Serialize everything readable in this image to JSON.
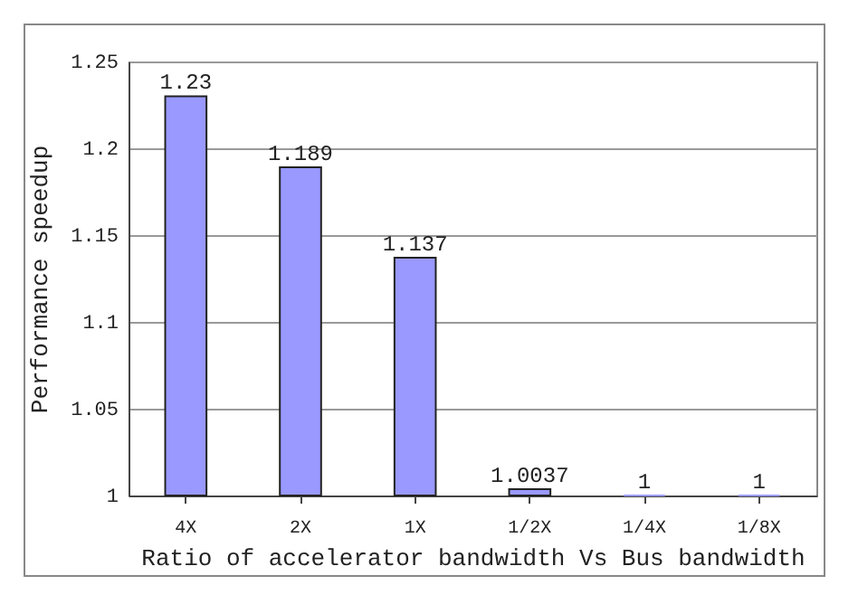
{
  "chart_data": {
    "type": "bar",
    "xlabel": "Ratio of accelerator bandwidth Vs Bus bandwidth",
    "ylabel": "Performance speedup",
    "categories": [
      "4X",
      "2X",
      "1X",
      "1/2X",
      "1/4X",
      "1/8X"
    ],
    "values": [
      1.23,
      1.189,
      1.137,
      1.0037,
      1,
      1
    ],
    "color": "#9999ff",
    "ylim": [
      1,
      1.25
    ],
    "yticks": [
      1,
      1.05,
      1.1,
      1.15,
      1.2,
      1.25
    ],
    "grid": "y",
    "data_labels": true
  }
}
